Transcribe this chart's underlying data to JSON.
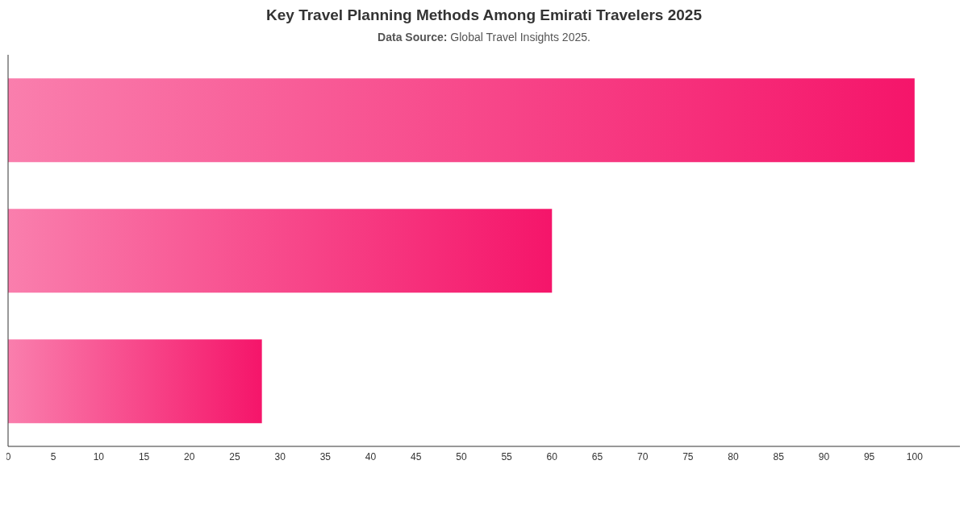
{
  "chart_data": {
    "type": "bar",
    "orientation": "horizontal",
    "title": "Key Travel Planning Methods Among Emirati Travelers 2025",
    "subtitle": "Data Source: Global Travel Insights 2025.",
    "categories": [
      null,
      null,
      null
    ],
    "values": [
      100,
      60,
      28
    ],
    "color": "#f5156a",
    "xlim": [
      0,
      105
    ],
    "xticks": [
      0,
      5,
      10,
      15,
      20,
      25,
      30,
      35,
      40,
      45,
      50,
      55,
      60,
      65,
      70,
      75,
      80,
      85,
      90,
      95,
      100
    ],
    "grid": false,
    "legend": false
  }
}
